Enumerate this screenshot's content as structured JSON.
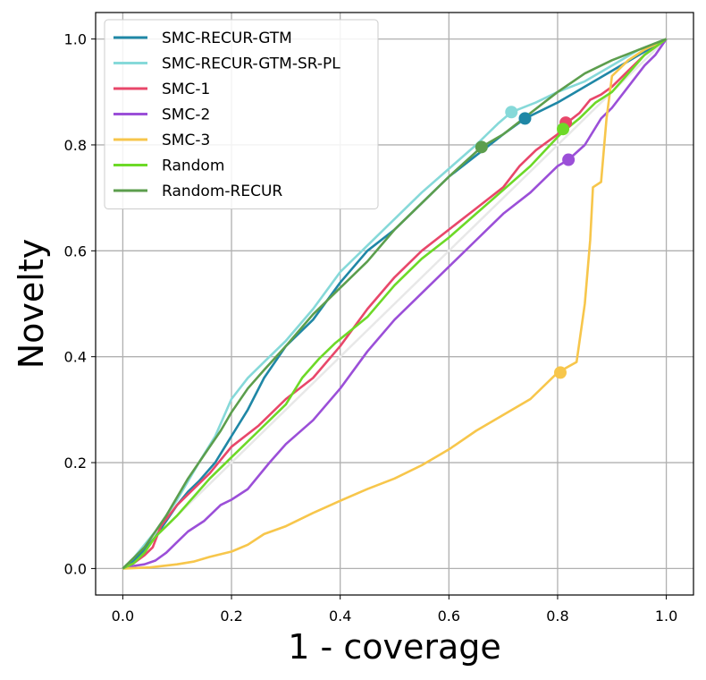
{
  "chart_data": {
    "type": "line",
    "title": "",
    "xlabel": "1 - coverage",
    "ylabel": "Novelty",
    "xlim": [
      -0.05,
      1.05
    ],
    "ylim": [
      -0.05,
      1.05
    ],
    "xticks": [
      "0.0",
      "0.2",
      "0.4",
      "0.6",
      "0.8",
      "1.0"
    ],
    "yticks": [
      "0.0",
      "0.2",
      "0.4",
      "0.6",
      "0.8",
      "1.0"
    ],
    "grid": true,
    "legend_position": "upper-left",
    "reference_line": {
      "x": [
        0,
        1
      ],
      "y": [
        0,
        1
      ],
      "color": "#e8e8e8"
    },
    "series": [
      {
        "name": "SMC-RECUR-GTM",
        "color": "#1f87a6",
        "x": [
          0,
          0.02,
          0.04,
          0.06,
          0.08,
          0.1,
          0.12,
          0.14,
          0.17,
          0.2,
          0.23,
          0.26,
          0.3,
          0.35,
          0.4,
          0.45,
          0.5,
          0.55,
          0.6,
          0.65,
          0.7,
          0.74,
          0.8,
          0.85,
          0.9,
          0.95,
          1.0
        ],
        "y": [
          0,
          0.015,
          0.035,
          0.06,
          0.09,
          0.12,
          0.145,
          0.165,
          0.2,
          0.25,
          0.3,
          0.36,
          0.42,
          0.47,
          0.54,
          0.6,
          0.64,
          0.69,
          0.74,
          0.78,
          0.82,
          0.85,
          0.88,
          0.91,
          0.94,
          0.97,
          1.0
        ],
        "marker": {
          "x": 0.74,
          "y": 0.85
        }
      },
      {
        "name": "SMC-RECUR-GTM-SR-PL",
        "color": "#86d9d9",
        "x": [
          0,
          0.02,
          0.04,
          0.06,
          0.08,
          0.1,
          0.12,
          0.14,
          0.17,
          0.2,
          0.23,
          0.26,
          0.3,
          0.35,
          0.4,
          0.45,
          0.5,
          0.55,
          0.6,
          0.65,
          0.69,
          0.715,
          0.76,
          0.8,
          0.85,
          0.9,
          0.95,
          1.0
        ],
        "y": [
          0,
          0.02,
          0.045,
          0.07,
          0.1,
          0.13,
          0.165,
          0.2,
          0.25,
          0.32,
          0.36,
          0.39,
          0.43,
          0.49,
          0.56,
          0.61,
          0.66,
          0.71,
          0.755,
          0.8,
          0.84,
          0.862,
          0.88,
          0.9,
          0.92,
          0.95,
          0.98,
          1.0
        ],
        "marker": {
          "x": 0.715,
          "y": 0.862
        }
      },
      {
        "name": "SMC-1",
        "color": "#e8476a",
        "x": [
          0,
          0.02,
          0.04,
          0.055,
          0.07,
          0.1,
          0.13,
          0.16,
          0.2,
          0.25,
          0.3,
          0.35,
          0.4,
          0.45,
          0.5,
          0.55,
          0.6,
          0.65,
          0.7,
          0.73,
          0.76,
          0.8,
          0.815,
          0.84,
          0.86,
          0.88,
          0.9,
          0.93,
          0.96,
          1.0
        ],
        "y": [
          0,
          0.01,
          0.025,
          0.04,
          0.08,
          0.12,
          0.15,
          0.18,
          0.23,
          0.27,
          0.32,
          0.36,
          0.42,
          0.49,
          0.55,
          0.6,
          0.64,
          0.68,
          0.72,
          0.76,
          0.79,
          0.82,
          0.84,
          0.86,
          0.885,
          0.895,
          0.91,
          0.94,
          0.97,
          1.0
        ],
        "marker": {
          "x": 0.815,
          "y": 0.842
        }
      },
      {
        "name": "SMC-2",
        "color": "#9b4fd8",
        "x": [
          0,
          0.02,
          0.04,
          0.06,
          0.08,
          0.1,
          0.12,
          0.15,
          0.18,
          0.2,
          0.23,
          0.27,
          0.3,
          0.35,
          0.4,
          0.45,
          0.5,
          0.55,
          0.6,
          0.65,
          0.7,
          0.75,
          0.8,
          0.82,
          0.85,
          0.88,
          0.9,
          0.93,
          0.96,
          0.98,
          1.0
        ],
        "y": [
          0,
          0.005,
          0.008,
          0.015,
          0.03,
          0.05,
          0.07,
          0.09,
          0.12,
          0.13,
          0.15,
          0.2,
          0.235,
          0.28,
          0.34,
          0.41,
          0.47,
          0.52,
          0.57,
          0.62,
          0.67,
          0.71,
          0.76,
          0.772,
          0.8,
          0.85,
          0.87,
          0.91,
          0.95,
          0.97,
          1.0
        ],
        "marker": {
          "x": 0.82,
          "y": 0.772
        }
      },
      {
        "name": "SMC-3",
        "color": "#f7c64b",
        "x": [
          0,
          0.05,
          0.1,
          0.13,
          0.16,
          0.2,
          0.23,
          0.26,
          0.3,
          0.35,
          0.4,
          0.45,
          0.5,
          0.55,
          0.6,
          0.65,
          0.7,
          0.75,
          0.8,
          0.835,
          0.85,
          0.86,
          0.865,
          0.88,
          0.89,
          0.9,
          0.91,
          0.93,
          0.96,
          1.0
        ],
        "y": [
          0,
          0.002,
          0.008,
          0.013,
          0.022,
          0.032,
          0.045,
          0.065,
          0.08,
          0.105,
          0.128,
          0.15,
          0.17,
          0.195,
          0.225,
          0.26,
          0.29,
          0.32,
          0.37,
          0.39,
          0.5,
          0.62,
          0.72,
          0.73,
          0.85,
          0.93,
          0.94,
          0.96,
          0.98,
          1.0
        ],
        "marker": {
          "x": 0.805,
          "y": 0.37
        }
      },
      {
        "name": "Random",
        "color": "#6dd927",
        "x": [
          0,
          0.02,
          0.04,
          0.06,
          0.08,
          0.1,
          0.13,
          0.16,
          0.2,
          0.25,
          0.3,
          0.33,
          0.36,
          0.39,
          0.42,
          0.45,
          0.5,
          0.55,
          0.6,
          0.65,
          0.7,
          0.75,
          0.8,
          0.81,
          0.84,
          0.87,
          0.9,
          0.93,
          0.96,
          1.0
        ],
        "y": [
          0,
          0.01,
          0.03,
          0.06,
          0.08,
          0.1,
          0.135,
          0.17,
          0.21,
          0.26,
          0.31,
          0.36,
          0.395,
          0.425,
          0.45,
          0.475,
          0.535,
          0.585,
          0.625,
          0.67,
          0.715,
          0.76,
          0.815,
          0.825,
          0.85,
          0.88,
          0.9,
          0.935,
          0.97,
          1.0
        ],
        "marker": {
          "x": 0.81,
          "y": 0.83
        }
      },
      {
        "name": "Random-RECUR",
        "color": "#5c9e4d",
        "x": [
          0,
          0.02,
          0.04,
          0.06,
          0.08,
          0.1,
          0.12,
          0.14,
          0.16,
          0.18,
          0.2,
          0.23,
          0.26,
          0.3,
          0.35,
          0.4,
          0.45,
          0.5,
          0.55,
          0.6,
          0.66,
          0.7,
          0.75,
          0.8,
          0.85,
          0.9,
          0.95,
          1.0
        ],
        "y": [
          0,
          0.02,
          0.04,
          0.07,
          0.1,
          0.135,
          0.17,
          0.2,
          0.23,
          0.26,
          0.295,
          0.34,
          0.375,
          0.42,
          0.48,
          0.53,
          0.58,
          0.64,
          0.69,
          0.74,
          0.796,
          0.82,
          0.86,
          0.9,
          0.935,
          0.96,
          0.98,
          1.0
        ],
        "marker": {
          "x": 0.66,
          "y": 0.796
        }
      }
    ]
  }
}
